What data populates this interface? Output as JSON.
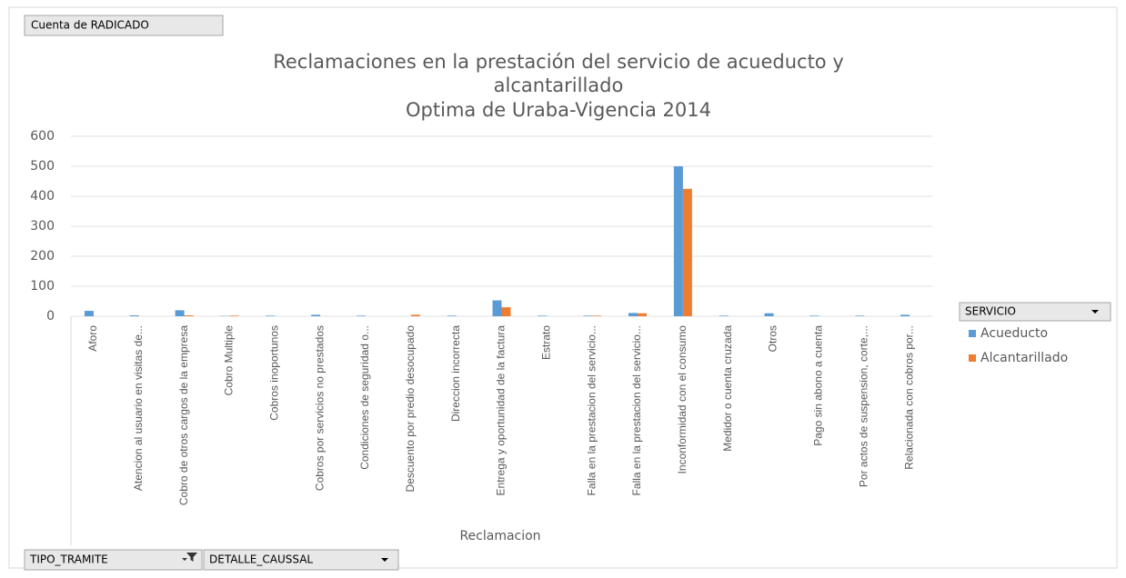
{
  "field_buttons": {
    "value_field": "Cuenta de RADICADO",
    "legend_field": "SERVICIO",
    "filters": [
      "TIPO_TRAMITE",
      "DETALLE_CAUSSAL"
    ]
  },
  "chart_data": {
    "type": "bar",
    "title": [
      "Reclamaciones en la prestación del servicio de acueducto y",
      "alcantarillado",
      "Optima de Uraba-Vigencia 2014"
    ],
    "x_label": "Reclamacion",
    "categories": [
      "Aforo",
      "Atencion al usuario en visitas de...",
      "Cobro de otros cargos de la empresa",
      "Cobro Multiple",
      "Cobros inoportunos",
      "Cobros por servicios no prestados",
      "Condiciones de seguridad o...",
      "Descuento por predio desocupado",
      "Direccion incorrecta",
      "Entrega y oportunidad de la factura",
      "Estrato",
      "Falla en la prestacion del servicio...",
      "Falla en la prestacion del servicio...",
      "Inconformidad con el consumo",
      "Medidor o cuenta cruzada",
      "Otros",
      "Pago sin abono a cuenta",
      "Por actos de suspension, corte,...",
      "Relacionada con cobros por..."
    ],
    "series": [
      {
        "name": "Acueducto",
        "color": "#5b9bd5",
        "values": [
          18,
          3,
          20,
          1,
          2,
          5,
          2,
          0,
          2,
          53,
          2,
          2,
          11,
          500,
          2,
          10,
          2,
          2,
          5
        ]
      },
      {
        "name": "Alcantarillado",
        "color": "#ed7d31",
        "values": [
          0,
          0,
          3,
          2,
          0,
          0,
          0,
          5,
          0,
          30,
          0,
          2,
          10,
          425,
          0,
          0,
          0,
          0,
          0
        ]
      }
    ],
    "ylim": [
      0,
      600
    ],
    "yticks": [
      0,
      100,
      200,
      300,
      400,
      500,
      600
    ],
    "grid": true,
    "legend": "right"
  }
}
